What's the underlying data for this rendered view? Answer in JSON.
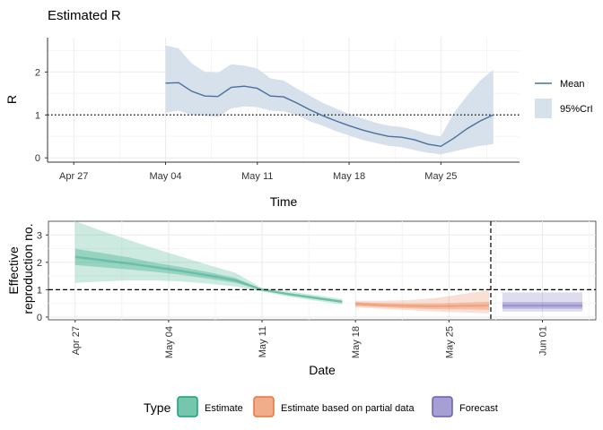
{
  "colors": {
    "estimate": "#1b9e77",
    "partial": "#e8743b",
    "forecast": "#6a5fb5",
    "mean_line": "#4a6f9c",
    "ribbon": "#d7e1ec",
    "grid_major": "#ebebeb",
    "grid_minor": "#f5f5f5"
  },
  "chart_data": [
    {
      "type": "line",
      "title": "Estimated R",
      "xlabel": "Time",
      "ylabel": "R",
      "x_axis": "date",
      "xlim": [
        "2020-04-25",
        "2020-05-31"
      ],
      "ylim": [
        -0.1,
        2.8
      ],
      "x_ticks": [
        {
          "date": "2020-04-27",
          "label": "Apr 27"
        },
        {
          "date": "2020-05-04",
          "label": "May 04"
        },
        {
          "date": "2020-05-11",
          "label": "May 11"
        },
        {
          "date": "2020-05-18",
          "label": "May 18"
        },
        {
          "date": "2020-05-25",
          "label": "May 25"
        }
      ],
      "y_ticks": [
        0,
        1,
        2
      ],
      "reference_line": {
        "y": 1,
        "style": "dotted"
      },
      "grid": true,
      "legend": {
        "position": "right",
        "items": [
          {
            "label": "Mean",
            "kind": "line"
          },
          {
            "label": "95%CrI",
            "kind": "band"
          }
        ]
      },
      "series": [
        {
          "name": "Mean",
          "x": [
            "2020-05-04",
            "2020-05-05",
            "2020-05-06",
            "2020-05-07",
            "2020-05-08",
            "2020-05-09",
            "2020-05-10",
            "2020-05-11",
            "2020-05-12",
            "2020-05-13",
            "2020-05-14",
            "2020-05-15",
            "2020-05-16",
            "2020-05-17",
            "2020-05-18",
            "2020-05-19",
            "2020-05-20",
            "2020-05-21",
            "2020-05-22",
            "2020-05-23",
            "2020-05-24",
            "2020-05-25",
            "2020-05-26",
            "2020-05-27",
            "2020-05-28",
            "2020-05-29"
          ],
          "values": [
            1.74,
            1.75,
            1.55,
            1.44,
            1.43,
            1.64,
            1.67,
            1.62,
            1.44,
            1.42,
            1.28,
            1.12,
            0.98,
            0.86,
            0.75,
            0.65,
            0.57,
            0.5,
            0.48,
            0.42,
            0.32,
            0.27,
            0.46,
            0.68,
            0.86,
            1.0
          ]
        },
        {
          "name": "95%CrI",
          "x": [
            "2020-05-04",
            "2020-05-05",
            "2020-05-06",
            "2020-05-07",
            "2020-05-08",
            "2020-05-09",
            "2020-05-10",
            "2020-05-11",
            "2020-05-12",
            "2020-05-13",
            "2020-05-14",
            "2020-05-15",
            "2020-05-16",
            "2020-05-17",
            "2020-05-18",
            "2020-05-19",
            "2020-05-20",
            "2020-05-21",
            "2020-05-22",
            "2020-05-23",
            "2020-05-24",
            "2020-05-25",
            "2020-05-26",
            "2020-05-27",
            "2020-05-28",
            "2020-05-29"
          ],
          "lower": [
            1.05,
            1.1,
            1.0,
            0.98,
            0.95,
            1.15,
            1.2,
            1.18,
            1.1,
            1.08,
            1.0,
            0.85,
            0.75,
            0.62,
            0.52,
            0.42,
            0.35,
            0.28,
            0.25,
            0.18,
            0.12,
            0.08,
            0.15,
            0.22,
            0.28,
            0.32
          ],
          "upper": [
            2.62,
            2.55,
            2.2,
            2.0,
            1.98,
            2.18,
            2.15,
            2.08,
            1.85,
            1.8,
            1.62,
            1.45,
            1.28,
            1.15,
            1.02,
            0.92,
            0.82,
            0.75,
            0.72,
            0.65,
            0.55,
            0.5,
            1.05,
            1.45,
            1.8,
            2.05
          ]
        }
      ]
    },
    {
      "type": "area",
      "title": "",
      "xlabel": "Date",
      "ylabel": [
        "Effective",
        "reproduction no."
      ],
      "x_axis": "date",
      "xlim": [
        "2020-04-25",
        "2020-06-05"
      ],
      "ylim": [
        -0.1,
        3.5
      ],
      "x_ticks": [
        {
          "date": "2020-04-27",
          "label": "Apr 27"
        },
        {
          "date": "2020-05-04",
          "label": "May 04"
        },
        {
          "date": "2020-05-11",
          "label": "May 11"
        },
        {
          "date": "2020-05-18",
          "label": "May 18"
        },
        {
          "date": "2020-05-25",
          "label": "May 25"
        },
        {
          "date": "2020-06-01",
          "label": "Jun 01"
        }
      ],
      "y_ticks": [
        0,
        1,
        2,
        3
      ],
      "reference_line": {
        "y": 1,
        "style": "dashed"
      },
      "forecast_divider": {
        "date": "2020-05-28",
        "style": "dashed"
      },
      "grid": true,
      "legend": {
        "position": "bottom",
        "title": "Type",
        "items": [
          {
            "label": "Estimate",
            "type": "estimate"
          },
          {
            "label": "Estimate based on partial data",
            "type": "partial"
          },
          {
            "label": "Forecast",
            "type": "forecast"
          }
        ]
      },
      "series": [
        {
          "name": "Estimate",
          "type": "estimate",
          "x": [
            "2020-04-27",
            "2020-04-29",
            "2020-05-01",
            "2020-05-03",
            "2020-05-05",
            "2020-05-07",
            "2020-05-09",
            "2020-05-11",
            "2020-05-13",
            "2020-05-15",
            "2020-05-17"
          ],
          "median": [
            2.2,
            2.08,
            1.96,
            1.82,
            1.68,
            1.52,
            1.34,
            1.0,
            0.84,
            0.7,
            0.56
          ],
          "lower_50": [
            1.9,
            1.82,
            1.74,
            1.65,
            1.54,
            1.4,
            1.25,
            0.98,
            0.8,
            0.66,
            0.52
          ],
          "upper_50": [
            2.5,
            2.34,
            2.18,
            1.98,
            1.82,
            1.64,
            1.43,
            1.02,
            0.88,
            0.74,
            0.6
          ],
          "lower_90": [
            1.25,
            1.3,
            1.34,
            1.34,
            1.3,
            1.22,
            1.12,
            0.94,
            0.74,
            0.6,
            0.46
          ],
          "upper_90": [
            3.5,
            3.15,
            2.82,
            2.5,
            2.2,
            1.9,
            1.62,
            1.06,
            0.94,
            0.8,
            0.66
          ]
        },
        {
          "name": "Estimate based on partial data",
          "type": "partial",
          "x": [
            "2020-05-18",
            "2020-05-20",
            "2020-05-22",
            "2020-05-24",
            "2020-05-26",
            "2020-05-28"
          ],
          "median": [
            0.48,
            0.43,
            0.41,
            0.4,
            0.41,
            0.42
          ],
          "lower_50": [
            0.4,
            0.36,
            0.32,
            0.29,
            0.28,
            0.27
          ],
          "upper_50": [
            0.55,
            0.51,
            0.5,
            0.5,
            0.53,
            0.56
          ],
          "lower_90": [
            0.35,
            0.3,
            0.25,
            0.2,
            0.17,
            0.14
          ],
          "upper_90": [
            0.6,
            0.6,
            0.62,
            0.7,
            0.84,
            0.98
          ]
        },
        {
          "name": "Forecast",
          "type": "forecast",
          "x": [
            "2020-05-29",
            "2020-06-04"
          ],
          "median": [
            0.42,
            0.42
          ],
          "lower_50": [
            0.3,
            0.3
          ],
          "upper_50": [
            0.55,
            0.55
          ],
          "lower_90": [
            0.2,
            0.2
          ],
          "upper_90": [
            0.9,
            0.9
          ]
        }
      ]
    }
  ]
}
